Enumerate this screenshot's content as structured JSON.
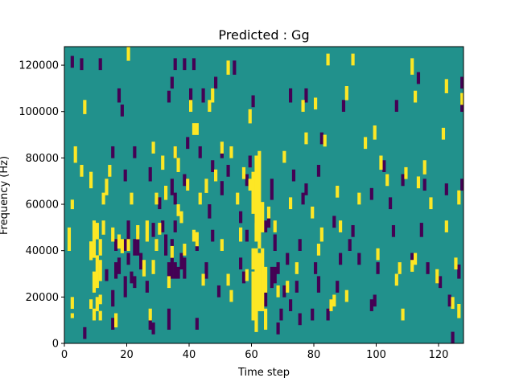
{
  "chart_data": {
    "type": "heatmap",
    "title": "Predicted : Gg",
    "xlabel": "Time step",
    "ylabel": "Frequency (Hz)",
    "xlim": [
      0,
      128
    ],
    "ylim": [
      0,
      128000
    ],
    "x_ticks": [
      0,
      20,
      40,
      60,
      80,
      100,
      120
    ],
    "y_ticks": [
      0,
      20000,
      40000,
      60000,
      80000,
      100000,
      120000
    ],
    "n_time_steps": 128,
    "n_freq_bins": 128,
    "background_level": 0,
    "levels": {
      "low": -1,
      "mid": 0,
      "high": 1
    },
    "colors": {
      "low": "#440154",
      "mid": "#21918c",
      "high": "#fde725"
    },
    "description": "",
    "high_cells": [
      [
        1,
        40,
        49
      ],
      [
        2,
        11,
        12
      ],
      [
        2,
        15,
        19
      ],
      [
        2,
        58,
        61
      ],
      [
        3,
        78,
        84
      ],
      [
        5,
        72,
        76
      ],
      [
        6,
        99,
        104
      ],
      [
        8,
        15,
        18
      ],
      [
        8,
        36,
        43
      ],
      [
        8,
        67,
        73
      ],
      [
        9,
        10,
        14
      ],
      [
        9,
        22,
        30
      ],
      [
        9,
        37,
        52
      ],
      [
        10,
        14,
        19
      ],
      [
        10,
        24,
        37
      ],
      [
        10,
        45,
        51
      ],
      [
        11,
        10,
        13
      ],
      [
        11,
        17,
        20
      ],
      [
        11,
        27,
        35
      ],
      [
        11,
        38,
        44
      ],
      [
        12,
        47,
        52
      ],
      [
        12,
        60,
        64
      ],
      [
        13,
        64,
        70
      ],
      [
        14,
        72,
        76
      ],
      [
        15,
        44,
        49
      ],
      [
        16,
        7,
        12
      ],
      [
        17,
        41,
        46
      ],
      [
        18,
        39,
        44
      ],
      [
        20,
        40,
        44
      ],
      [
        20,
        122,
        127
      ],
      [
        21,
        60,
        64
      ],
      [
        23,
        45,
        50
      ],
      [
        25,
        29,
        35
      ],
      [
        26,
        44,
        52
      ],
      [
        27,
        10,
        14
      ],
      [
        28,
        30,
        35
      ],
      [
        28,
        82,
        86
      ],
      [
        29,
        40,
        44
      ],
      [
        29,
        60,
        64
      ],
      [
        30,
        47,
        51
      ],
      [
        31,
        75,
        80
      ],
      [
        32,
        62,
        67
      ],
      [
        33,
        24,
        28
      ],
      [
        34,
        37,
        41
      ],
      [
        35,
        80,
        84
      ],
      [
        36,
        55,
        59
      ],
      [
        36,
        74,
        79
      ],
      [
        37,
        52,
        56
      ],
      [
        38,
        38,
        42
      ],
      [
        39,
        66,
        70
      ],
      [
        40,
        100,
        104
      ],
      [
        41,
        44,
        48
      ],
      [
        41,
        90,
        94
      ],
      [
        42,
        42,
        47
      ],
      [
        42,
        90,
        94
      ],
      [
        43,
        60,
        64
      ],
      [
        44,
        25,
        29
      ],
      [
        45,
        65,
        70
      ],
      [
        46,
        100,
        104
      ],
      [
        47,
        104,
        109
      ],
      [
        48,
        70,
        74
      ],
      [
        50,
        82,
        86
      ],
      [
        50,
        40,
        44
      ],
      [
        52,
        25,
        29
      ],
      [
        52,
        116,
        121
      ],
      [
        53,
        18,
        22
      ],
      [
        53,
        80,
        84
      ],
      [
        55,
        60,
        64
      ],
      [
        56,
        44,
        49
      ],
      [
        57,
        71,
        75
      ],
      [
        58,
        27,
        31
      ],
      [
        59,
        95,
        100
      ],
      [
        59,
        66,
        70
      ],
      [
        60,
        10,
        30
      ],
      [
        60,
        32,
        40
      ],
      [
        60,
        56,
        73
      ],
      [
        61,
        5,
        40
      ],
      [
        61,
        44,
        80
      ],
      [
        62,
        14,
        38
      ],
      [
        62,
        41,
        82
      ],
      [
        63,
        14,
        40
      ],
      [
        63,
        48,
        60
      ],
      [
        64,
        6,
        14
      ],
      [
        64,
        22,
        32
      ],
      [
        65,
        54,
        58
      ],
      [
        67,
        48,
        52
      ],
      [
        68,
        20,
        24
      ],
      [
        70,
        78,
        82
      ],
      [
        71,
        22,
        26
      ],
      [
        72,
        58,
        62
      ],
      [
        74,
        30,
        34
      ],
      [
        76,
        100,
        104
      ],
      [
        77,
        86,
        90
      ],
      [
        79,
        54,
        58
      ],
      [
        80,
        101,
        105
      ],
      [
        81,
        38,
        42
      ],
      [
        82,
        44,
        49
      ],
      [
        83,
        85,
        89
      ],
      [
        84,
        120,
        124
      ],
      [
        85,
        14,
        18
      ],
      [
        86,
        16,
        20
      ],
      [
        87,
        63,
        67
      ],
      [
        88,
        48,
        52
      ],
      [
        90,
        105,
        110
      ],
      [
        90,
        18,
        22
      ],
      [
        92,
        120,
        124
      ],
      [
        94,
        60,
        64
      ],
      [
        96,
        84,
        88
      ],
      [
        99,
        88,
        93
      ],
      [
        100,
        36,
        40
      ],
      [
        101,
        75,
        80
      ],
      [
        103,
        68,
        72
      ],
      [
        106,
        25,
        29
      ],
      [
        107,
        30,
        34
      ],
      [
        108,
        10,
        14
      ],
      [
        109,
        71,
        75
      ],
      [
        111,
        116,
        122
      ],
      [
        111,
        31,
        35
      ],
      [
        112,
        104,
        108
      ],
      [
        112,
        34,
        38
      ],
      [
        113,
        67,
        71
      ],
      [
        115,
        73,
        78
      ],
      [
        117,
        58,
        62
      ],
      [
        119,
        26,
        31
      ],
      [
        121,
        88,
        92
      ],
      [
        122,
        48,
        52
      ],
      [
        122,
        108,
        113
      ],
      [
        124,
        15,
        19
      ],
      [
        125,
        32,
        36
      ],
      [
        126,
        60,
        65
      ],
      [
        126,
        11,
        16
      ],
      [
        127,
        103,
        107
      ]
    ],
    "low_cells": [
      [
        2,
        119,
        123
      ],
      [
        5,
        118,
        122
      ],
      [
        6,
        2,
        6
      ],
      [
        11,
        118,
        122
      ],
      [
        13,
        27,
        31
      ],
      [
        15,
        6,
        10
      ],
      [
        15,
        16,
        22
      ],
      [
        15,
        80,
        84
      ],
      [
        16,
        28,
        34
      ],
      [
        16,
        40,
        44
      ],
      [
        17,
        30,
        36
      ],
      [
        17,
        104,
        109
      ],
      [
        18,
        98,
        102
      ],
      [
        19,
        20,
        28
      ],
      [
        19,
        40,
        44
      ],
      [
        19,
        70,
        74
      ],
      [
        20,
        34,
        38
      ],
      [
        20,
        44,
        52
      ],
      [
        21,
        26,
        30
      ],
      [
        22,
        24,
        28
      ],
      [
        22,
        38,
        44
      ],
      [
        22,
        80,
        84
      ],
      [
        23,
        38,
        46
      ],
      [
        24,
        32,
        38
      ],
      [
        26,
        22,
        26
      ],
      [
        27,
        6,
        10
      ],
      [
        27,
        70,
        75
      ],
      [
        28,
        4,
        8
      ],
      [
        28,
        46,
        51
      ],
      [
        30,
        58,
        62
      ],
      [
        31,
        48,
        52
      ],
      [
        32,
        38,
        46
      ],
      [
        33,
        6,
        14
      ],
      [
        33,
        28,
        34
      ],
      [
        33,
        104,
        108
      ],
      [
        34,
        28,
        44
      ],
      [
        34,
        64,
        70
      ],
      [
        34,
        110,
        114
      ],
      [
        35,
        28,
        34
      ],
      [
        35,
        48,
        52
      ],
      [
        35,
        60,
        64
      ],
      [
        35,
        80,
        84
      ],
      [
        35,
        118,
        122
      ],
      [
        36,
        28,
        32
      ],
      [
        37,
        32,
        38
      ],
      [
        38,
        28,
        36
      ],
      [
        38,
        68,
        72
      ],
      [
        38,
        118,
        122
      ],
      [
        39,
        66,
        70
      ],
      [
        39,
        84,
        88
      ],
      [
        40,
        104,
        109
      ],
      [
        41,
        118,
        122
      ],
      [
        42,
        6,
        10
      ],
      [
        42,
        40,
        44
      ],
      [
        43,
        80,
        84
      ],
      [
        44,
        104,
        109
      ],
      [
        45,
        28,
        34
      ],
      [
        46,
        54,
        59
      ],
      [
        47,
        44,
        48
      ],
      [
        47,
        74,
        78
      ],
      [
        48,
        110,
        114
      ],
      [
        49,
        20,
        24
      ],
      [
        50,
        64,
        69
      ],
      [
        50,
        80,
        84
      ],
      [
        52,
        72,
        76
      ],
      [
        54,
        116,
        121
      ],
      [
        56,
        32,
        36
      ],
      [
        56,
        52,
        56
      ],
      [
        57,
        26,
        30
      ],
      [
        58,
        44,
        48
      ],
      [
        58,
        68,
        72
      ],
      [
        59,
        76,
        80
      ],
      [
        60,
        102,
        106
      ],
      [
        61,
        52,
        56
      ],
      [
        62,
        30,
        34
      ],
      [
        64,
        16,
        22
      ],
      [
        64,
        48,
        52
      ],
      [
        65,
        50,
        56
      ],
      [
        66,
        24,
        32
      ],
      [
        66,
        62,
        70
      ],
      [
        67,
        26,
        32
      ],
      [
        67,
        40,
        46
      ],
      [
        68,
        30,
        34
      ],
      [
        68,
        4,
        8
      ],
      [
        69,
        10,
        14
      ],
      [
        70,
        20,
        24
      ],
      [
        71,
        34,
        38
      ],
      [
        72,
        104,
        109
      ],
      [
        72,
        14,
        18
      ],
      [
        73,
        70,
        74
      ],
      [
        74,
        22,
        26
      ],
      [
        75,
        8,
        12
      ],
      [
        75,
        40,
        44
      ],
      [
        76,
        60,
        64
      ],
      [
        77,
        64,
        68
      ],
      [
        77,
        104,
        109
      ],
      [
        79,
        10,
        14
      ],
      [
        80,
        30,
        34
      ],
      [
        81,
        22,
        28
      ],
      [
        81,
        72,
        76
      ],
      [
        82,
        86,
        90
      ],
      [
        84,
        10,
        14
      ],
      [
        85,
        14,
        18
      ],
      [
        86,
        50,
        54
      ],
      [
        87,
        22,
        26
      ],
      [
        88,
        34,
        38
      ],
      [
        89,
        100,
        104
      ],
      [
        91,
        40,
        44
      ],
      [
        92,
        46,
        50
      ],
      [
        94,
        34,
        38
      ],
      [
        98,
        14,
        18
      ],
      [
        98,
        62,
        66
      ],
      [
        99,
        16,
        20
      ],
      [
        100,
        30,
        34
      ],
      [
        102,
        74,
        78
      ],
      [
        104,
        58,
        62
      ],
      [
        105,
        46,
        50
      ],
      [
        106,
        100,
        104
      ],
      [
        108,
        68,
        72
      ],
      [
        111,
        34,
        38
      ],
      [
        113,
        112,
        116
      ],
      [
        114,
        46,
        51
      ],
      [
        115,
        66,
        70
      ],
      [
        116,
        30,
        34
      ],
      [
        119,
        26,
        30
      ],
      [
        120,
        24,
        28
      ],
      [
        122,
        64,
        68
      ],
      [
        123,
        16,
        20
      ],
      [
        124,
        0,
        4
      ],
      [
        126,
        28,
        33
      ],
      [
        127,
        100,
        106
      ],
      [
        127,
        66,
        70
      ],
      [
        127,
        110,
        114
      ]
    ]
  }
}
